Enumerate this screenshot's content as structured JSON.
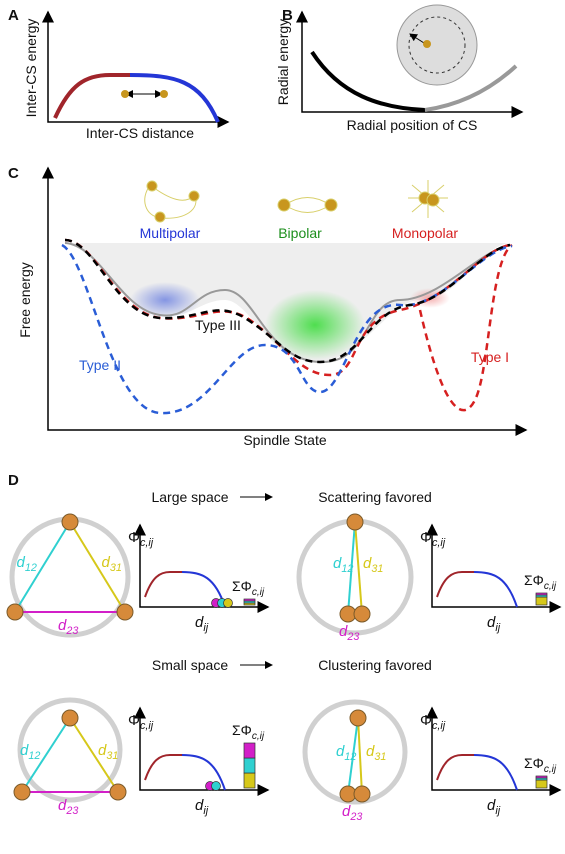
{
  "panels": {
    "A": {
      "label": "A",
      "y_axis": "Inter-CS energy",
      "x_axis": "Inter-CS distance"
    },
    "B": {
      "label": "B",
      "y_axis": "Radial energy",
      "x_axis": "Radial position of CS"
    },
    "C": {
      "label": "C",
      "states": [
        "Multipolar",
        "Bipolar",
        "Monopolar"
      ],
      "y_axis": "Free  energy",
      "x_axis": "Spindle State",
      "curves": [
        "Type III",
        "Type II",
        "Type I"
      ]
    },
    "D": {
      "label": "D",
      "rows": [
        {
          "left": "Large space",
          "right": "Scattering favored"
        },
        {
          "left": "Small space",
          "right": "Clustering favored"
        }
      ],
      "phi_label": {
        "main": "Φ",
        "sub": "c,ij"
      },
      "sum_label": {
        "main": "ΣΦ",
        "sub": "c,ij"
      },
      "x_label": {
        "main": "d",
        "sub": "ij"
      },
      "distances": [
        {
          "main": "d",
          "sub": "12"
        },
        {
          "main": "d",
          "sub": "31"
        },
        {
          "main": "d",
          "sub": "23"
        }
      ]
    }
  }
}
